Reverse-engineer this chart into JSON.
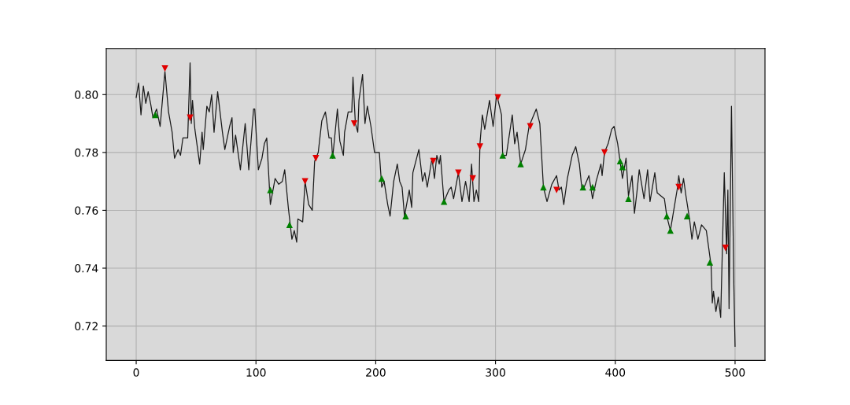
{
  "chart_data": {
    "type": "line",
    "xlim": [
      -25,
      525
    ],
    "xticks": [
      0,
      100,
      200,
      300,
      400,
      500
    ],
    "ylim": [
      0.7081,
      0.8159
    ],
    "yticks": [
      0.72,
      0.74,
      0.76,
      0.78,
      {
        "value": 0.8,
        "label": "0.80"
      }
    ],
    "grid": true,
    "legend": false,
    "series": [
      {
        "color": "#1a1a1a",
        "marker": "none",
        "line_style": "solid",
        "x": [
          0,
          2,
          4,
          6,
          8,
          10,
          12,
          14,
          17,
          20,
          24,
          27,
          30,
          32,
          35,
          37,
          39,
          43,
          45,
          46,
          47,
          49,
          53,
          55,
          56,
          59,
          61,
          63,
          65,
          68,
          72,
          74,
          78,
          80,
          81,
          83,
          87,
          91,
          94,
          98,
          99,
          102,
          105,
          107,
          109,
          112,
          116,
          119,
          122,
          124,
          127,
          130,
          132,
          134,
          135,
          139,
          141,
          144,
          147,
          149,
          152,
          155,
          158,
          161,
          163,
          164,
          168,
          170,
          173,
          174,
          177,
          180,
          181,
          183,
          185,
          186,
          189,
          191,
          193,
          196,
          199,
          203,
          205,
          207,
          210,
          212,
          215,
          218,
          220,
          222,
          224,
          228,
          230,
          231,
          236,
          238,
          239,
          241,
          243,
          247,
          249,
          251,
          253,
          254,
          257,
          261,
          263,
          265,
          269,
          272,
          275,
          278,
          280,
          282,
          284,
          286,
          287,
          289,
          291,
          295,
          297,
          298,
          301,
          305,
          306,
          309,
          314,
          316,
          318,
          321,
          325,
          328,
          332,
          334,
          337,
          340,
          343,
          347,
          351,
          353,
          355,
          357,
          360,
          364,
          367,
          370,
          372,
          374,
          378,
          381,
          384,
          388,
          389,
          391,
          394,
          397,
          399,
          402,
          404,
          406,
          409,
          411,
          414,
          416,
          418,
          420,
          424,
          427,
          429,
          433,
          435,
          441,
          443,
          446,
          448,
          452,
          453,
          455,
          457,
          459,
          462,
          464,
          466,
          469,
          472,
          476,
          480,
          481,
          482,
          484,
          486,
          488,
          491,
          493,
          494,
          495,
          497,
          499,
          500
        ],
        "values": [
          0.799,
          0.804,
          0.793,
          0.803,
          0.797,
          0.801,
          0.797,
          0.792,
          0.795,
          0.789,
          0.808,
          0.794,
          0.787,
          0.778,
          0.781,
          0.779,
          0.785,
          0.785,
          0.811,
          0.79,
          0.798,
          0.788,
          0.776,
          0.787,
          0.781,
          0.796,
          0.794,
          0.8,
          0.787,
          0.801,
          0.787,
          0.781,
          0.789,
          0.792,
          0.78,
          0.786,
          0.774,
          0.79,
          0.774,
          0.795,
          0.795,
          0.774,
          0.778,
          0.783,
          0.785,
          0.762,
          0.771,
          0.769,
          0.77,
          0.774,
          0.761,
          0.75,
          0.753,
          0.749,
          0.757,
          0.756,
          0.77,
          0.762,
          0.76,
          0.777,
          0.78,
          0.791,
          0.794,
          0.785,
          0.785,
          0.778,
          0.795,
          0.784,
          0.779,
          0.787,
          0.794,
          0.794,
          0.806,
          0.79,
          0.787,
          0.798,
          0.807,
          0.79,
          0.796,
          0.789,
          0.78,
          0.78,
          0.768,
          0.77,
          0.762,
          0.758,
          0.77,
          0.776,
          0.77,
          0.768,
          0.758,
          0.767,
          0.761,
          0.773,
          0.781,
          0.774,
          0.77,
          0.773,
          0.768,
          0.778,
          0.771,
          0.779,
          0.776,
          0.779,
          0.763,
          0.767,
          0.768,
          0.764,
          0.773,
          0.763,
          0.77,
          0.763,
          0.776,
          0.763,
          0.767,
          0.763,
          0.783,
          0.793,
          0.788,
          0.798,
          0.792,
          0.789,
          0.8,
          0.793,
          0.779,
          0.779,
          0.793,
          0.783,
          0.787,
          0.776,
          0.781,
          0.789,
          0.793,
          0.795,
          0.79,
          0.768,
          0.763,
          0.769,
          0.772,
          0.767,
          0.768,
          0.762,
          0.771,
          0.779,
          0.782,
          0.776,
          0.768,
          0.768,
          0.772,
          0.764,
          0.77,
          0.776,
          0.772,
          0.78,
          0.783,
          0.788,
          0.789,
          0.783,
          0.777,
          0.771,
          0.778,
          0.765,
          0.772,
          0.759,
          0.766,
          0.774,
          0.764,
          0.774,
          0.763,
          0.773,
          0.766,
          0.764,
          0.758,
          0.753,
          0.758,
          0.768,
          0.772,
          0.766,
          0.771,
          0.765,
          0.757,
          0.75,
          0.756,
          0.75,
          0.755,
          0.753,
          0.741,
          0.728,
          0.732,
          0.725,
          0.73,
          0.723,
          0.773,
          0.745,
          0.767,
          0.726,
          0.796,
          0.734,
          0.713
        ]
      },
      {
        "type": "scatter",
        "color": "#008000",
        "marker": "triangle",
        "x": [
          16,
          112,
          128,
          164,
          205,
          225,
          257,
          306,
          321,
          340,
          373,
          381,
          404,
          406,
          411,
          443,
          446,
          460,
          479
        ],
        "values": [
          0.793,
          0.767,
          0.755,
          0.779,
          0.771,
          0.758,
          0.763,
          0.779,
          0.776,
          0.768,
          0.768,
          0.768,
          0.777,
          0.775,
          0.764,
          0.758,
          0.753,
          0.758,
          0.742
        ]
      },
      {
        "type": "scatter",
        "color": "#e00000",
        "marker": "triangle_down",
        "x": [
          24,
          45,
          141,
          150,
          182,
          248,
          269,
          281,
          287,
          302,
          329,
          351,
          391,
          453,
          492
        ],
        "values": [
          0.809,
          0.792,
          0.77,
          0.778,
          0.79,
          0.777,
          0.773,
          0.771,
          0.782,
          0.799,
          0.789,
          0.767,
          0.78,
          0.768,
          0.747
        ]
      }
    ]
  }
}
